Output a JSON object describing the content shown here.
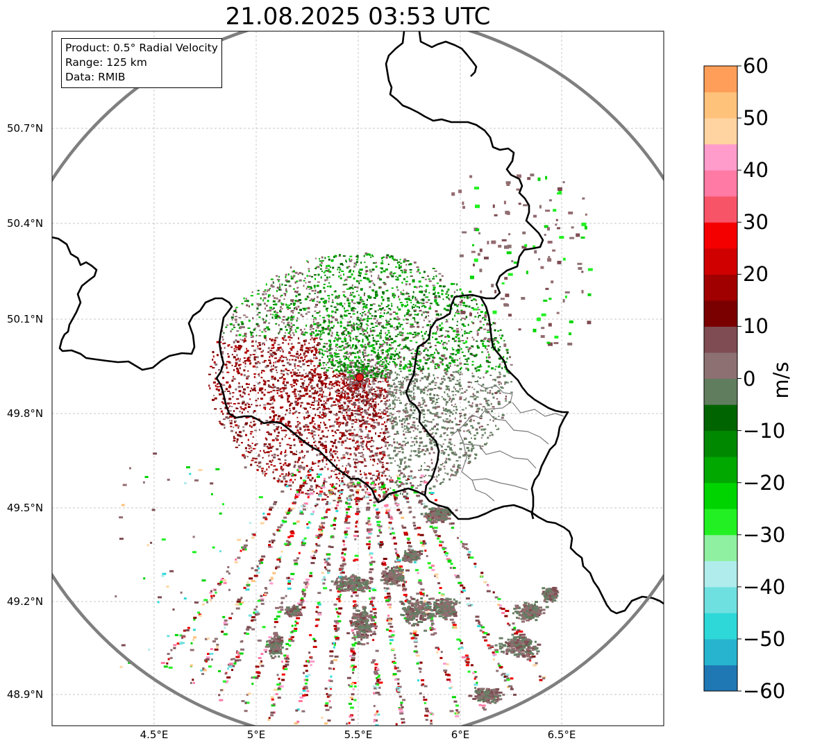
{
  "title": "21.08.2025 03:53 UTC",
  "info": {
    "product": "Product: 0.5° Radial Velocity",
    "range": "Range: 125 km",
    "data": "Data: RMIB"
  },
  "lat_labels": [
    "50.7°N",
    "50.4°N",
    "50.1°N",
    "49.8°N",
    "49.5°N",
    "49.2°N",
    "48.9°N"
  ],
  "lon_labels": [
    "4.5°E",
    "5°E",
    "5.5°E",
    "6°E",
    "6.5°E"
  ],
  "colorbar": {
    "unit": "m/s",
    "range": [
      -60,
      60
    ],
    "ticks": [
      "60",
      "50",
      "40",
      "30",
      "20",
      "10",
      "0",
      "−10",
      "−20",
      "−30",
      "−40",
      "−50",
      "−60"
    ],
    "colors": [
      {
        "from": -60,
        "to": -55,
        "color": "#1f77b4"
      },
      {
        "from": -55,
        "to": -50,
        "color": "#27b4cf"
      },
      {
        "from": -50,
        "to": -45,
        "color": "#2fd8d8"
      },
      {
        "from": -45,
        "to": -40,
        "color": "#6fe0e0"
      },
      {
        "from": -40,
        "to": -35,
        "color": "#b0ecec"
      },
      {
        "from": -35,
        "to": -30,
        "color": "#8ef0a0"
      },
      {
        "from": -30,
        "to": -25,
        "color": "#22f022"
      },
      {
        "from": -25,
        "to": -20,
        "color": "#00d400"
      },
      {
        "from": -20,
        "to": -15,
        "color": "#00a800"
      },
      {
        "from": -15,
        "to": -10,
        "color": "#008800"
      },
      {
        "from": -10,
        "to": -5,
        "color": "#006400"
      },
      {
        "from": -5,
        "to": 0,
        "color": "#607d5e"
      },
      {
        "from": 0,
        "to": 5,
        "color": "#8c7072"
      },
      {
        "from": 5,
        "to": 10,
        "color": "#7e4c52"
      },
      {
        "from": 10,
        "to": 15,
        "color": "#7a0000"
      },
      {
        "from": 15,
        "to": 20,
        "color": "#a00000"
      },
      {
        "from": 20,
        "to": 25,
        "color": "#d00000"
      },
      {
        "from": 25,
        "to": 30,
        "color": "#f40000"
      },
      {
        "from": 30,
        "to": 35,
        "color": "#f85468"
      },
      {
        "from": 35,
        "to": 40,
        "color": "#ff7aa4"
      },
      {
        "from": 40,
        "to": 45,
        "color": "#ff9ccc"
      },
      {
        "from": 45,
        "to": 50,
        "color": "#ffd4a0"
      },
      {
        "from": 50,
        "to": 55,
        "color": "#ffc27a"
      },
      {
        "from": 55,
        "to": 60,
        "color": "#ff9e58"
      }
    ]
  },
  "map": {
    "extent_lon": [
      4.0,
      7.0
    ],
    "extent_lat": [
      48.8,
      50.95
    ],
    "radar_site": {
      "lon": 5.5,
      "lat": 49.91
    },
    "gridlines": true,
    "range_ring": "gray",
    "borders": "black",
    "regions": "gray"
  }
}
